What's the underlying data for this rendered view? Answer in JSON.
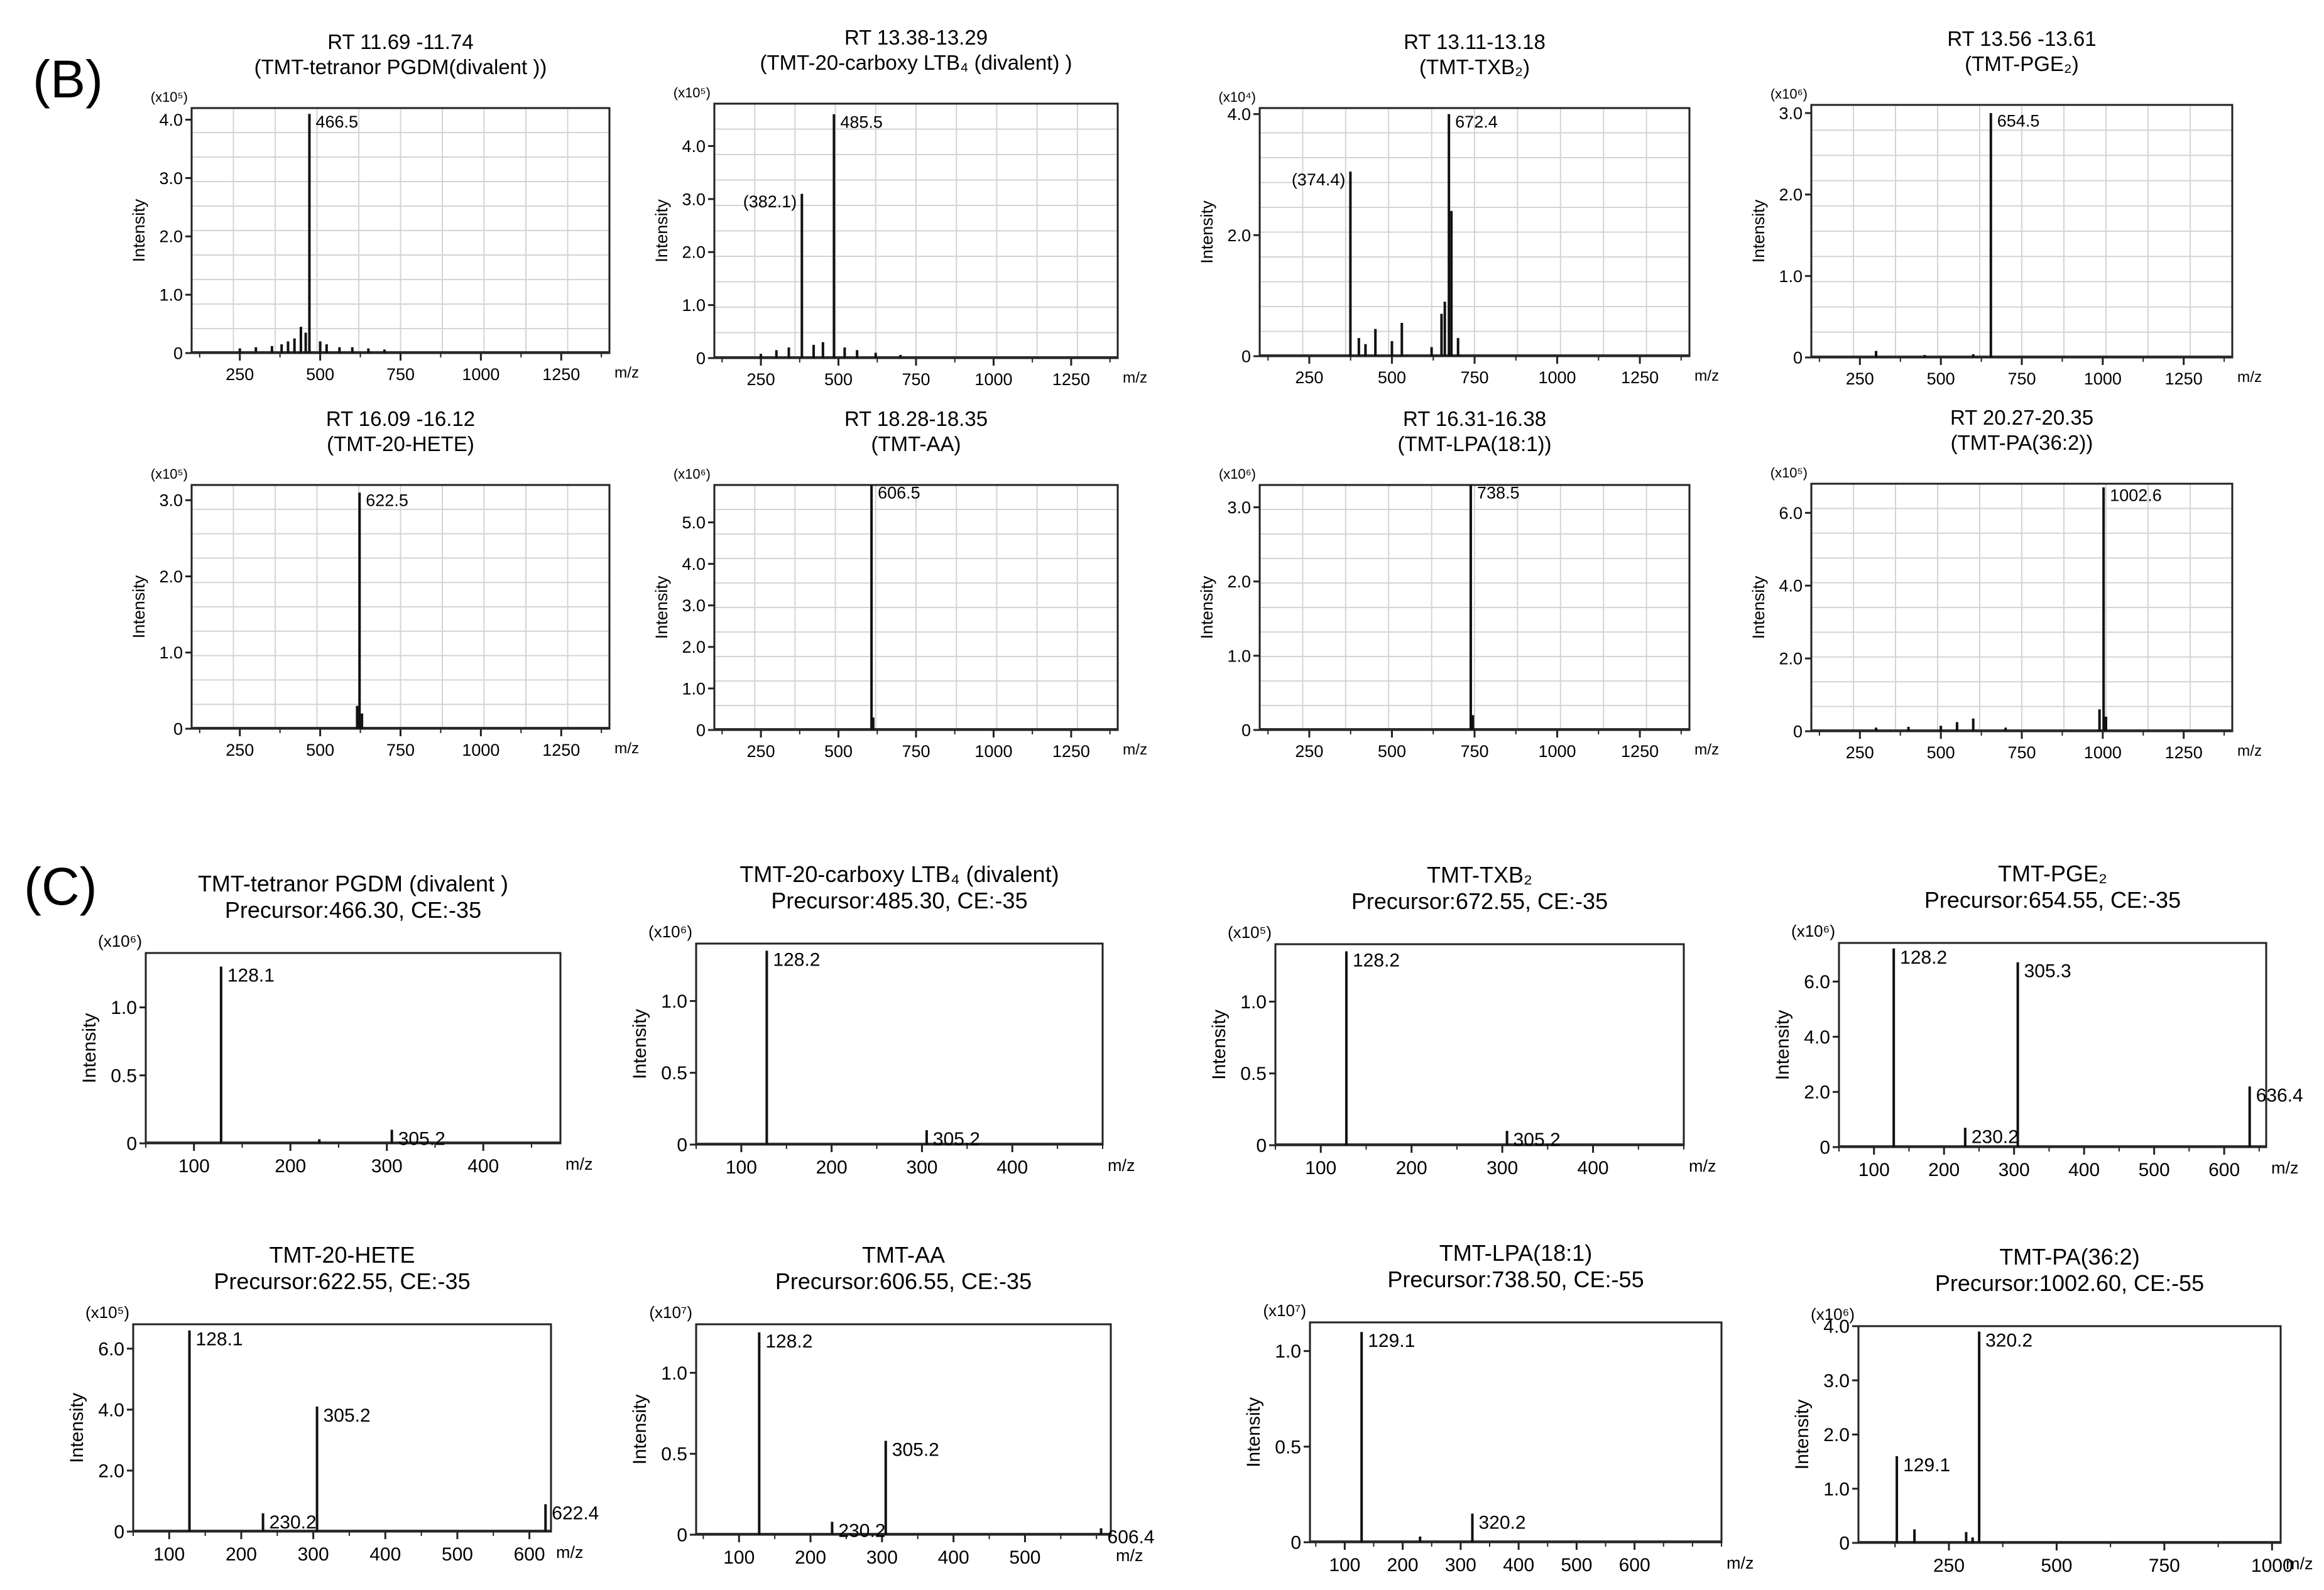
{
  "panels": [
    {
      "label": "(B)"
    },
    {
      "label": "(C)"
    }
  ],
  "chart_data": [
    {
      "panel": "B",
      "type": "bar",
      "title": [
        "RT 11.69 -11.74",
        "(TMT-tetranor PGDM(divalent ))"
      ],
      "ylabel": "Intensity",
      "xlabel": "m/z",
      "scale_label": "(x10⁵)",
      "xlim": [
        100,
        1400
      ],
      "xticks": [
        250,
        500,
        750,
        1000,
        1250
      ],
      "ylim": [
        0,
        4.2
      ],
      "yticks": [
        0,
        1.0,
        2.0,
        3.0,
        4.0
      ],
      "ytick_labels": [
        "0",
        "1.0",
        "2.0",
        "3.0",
        "4.0"
      ],
      "peaks": [
        {
          "x": 466.5,
          "y": 4.1,
          "label": "466.5"
        },
        {
          "x": 440,
          "y": 0.45
        },
        {
          "x": 455,
          "y": 0.35
        },
        {
          "x": 420,
          "y": 0.25
        },
        {
          "x": 400,
          "y": 0.2
        },
        {
          "x": 380,
          "y": 0.15
        },
        {
          "x": 500,
          "y": 0.2
        },
        {
          "x": 520,
          "y": 0.15
        },
        {
          "x": 350,
          "y": 0.12
        },
        {
          "x": 300,
          "y": 0.1
        },
        {
          "x": 250,
          "y": 0.08
        },
        {
          "x": 600,
          "y": 0.1
        },
        {
          "x": 650,
          "y": 0.08
        },
        {
          "x": 700,
          "y": 0.06
        },
        {
          "x": 560,
          "y": 0.1
        }
      ]
    },
    {
      "panel": "B",
      "type": "bar",
      "title": [
        "RT 13.38-13.29",
        "(TMT-20-carboxy LTB₄ (divalent) )"
      ],
      "ylabel": "Intensity",
      "xlabel": "m/z",
      "scale_label": "(x10⁵)",
      "xlim": [
        100,
        1400
      ],
      "xticks": [
        250,
        500,
        750,
        1000,
        1250
      ],
      "ylim": [
        0,
        4.8
      ],
      "yticks": [
        0,
        1.0,
        2.0,
        3.0,
        4.0
      ],
      "ytick_labels": [
        "0",
        "1.0",
        "2.0",
        "3.0",
        "4.0"
      ],
      "peaks": [
        {
          "x": 485.5,
          "y": 4.6,
          "label": "485.5"
        },
        {
          "x": 382.1,
          "y": 3.1,
          "label": "(382.1)"
        },
        {
          "x": 300,
          "y": 0.15
        },
        {
          "x": 340,
          "y": 0.2
        },
        {
          "x": 420,
          "y": 0.25
        },
        {
          "x": 450,
          "y": 0.3
        },
        {
          "x": 520,
          "y": 0.2
        },
        {
          "x": 560,
          "y": 0.15
        },
        {
          "x": 620,
          "y": 0.1
        },
        {
          "x": 700,
          "y": 0.06
        },
        {
          "x": 250,
          "y": 0.08
        }
      ]
    },
    {
      "panel": "B",
      "type": "bar",
      "title": [
        "RT 13.11-13.18",
        "(TMT-TXB₂)"
      ],
      "ylabel": "Intensity",
      "xlabel": "m/z",
      "scale_label": "(x10⁴)",
      "xlim": [
        100,
        1400
      ],
      "xticks": [
        250,
        500,
        750,
        1000,
        1250
      ],
      "ylim": [
        0,
        4.1
      ],
      "yticks": [
        0,
        2.0,
        4.0
      ],
      "ytick_labels": [
        "0",
        "2.0",
        "4.0"
      ],
      "peaks": [
        {
          "x": 672.4,
          "y": 4.0,
          "label": "672.4"
        },
        {
          "x": 374.4,
          "y": 3.05,
          "label": "(374.4)"
        },
        {
          "x": 680,
          "y": 2.4
        },
        {
          "x": 660,
          "y": 0.9
        },
        {
          "x": 650,
          "y": 0.7
        },
        {
          "x": 530,
          "y": 0.55
        },
        {
          "x": 450,
          "y": 0.45
        },
        {
          "x": 400,
          "y": 0.3
        },
        {
          "x": 420,
          "y": 0.2
        },
        {
          "x": 500,
          "y": 0.25
        },
        {
          "x": 700,
          "y": 0.3
        },
        {
          "x": 620,
          "y": 0.15
        }
      ]
    },
    {
      "panel": "B",
      "type": "bar",
      "title": [
        "RT 13.56 -13.61",
        "(TMT-PGE₂)"
      ],
      "ylabel": "Intensity",
      "xlabel": "m/z",
      "scale_label": "(x10⁶)",
      "xlim": [
        100,
        1400
      ],
      "xticks": [
        250,
        500,
        750,
        1000,
        1250
      ],
      "ylim": [
        0,
        3.1
      ],
      "yticks": [
        0,
        1.0,
        2.0,
        3.0
      ],
      "ytick_labels": [
        "0",
        "1.0",
        "2.0",
        "3.0"
      ],
      "peaks": [
        {
          "x": 654.5,
          "y": 3.0,
          "label": "654.5"
        },
        {
          "x": 300,
          "y": 0.08
        },
        {
          "x": 600,
          "y": 0.04
        },
        {
          "x": 450,
          "y": 0.03
        }
      ]
    },
    {
      "panel": "B",
      "type": "bar",
      "title": [
        "RT 16.09 -16.12",
        "(TMT-20-HETE)"
      ],
      "ylabel": "Intensity",
      "xlabel": "m/z",
      "scale_label": "(x10⁵)",
      "xlim": [
        100,
        1400
      ],
      "xticks": [
        250,
        500,
        750,
        1000,
        1250
      ],
      "ylim": [
        0,
        3.2
      ],
      "yticks": [
        0,
        1.0,
        2.0,
        3.0
      ],
      "ytick_labels": [
        "0",
        "1.0",
        "2.0",
        "3.0"
      ],
      "peaks": [
        {
          "x": 622.5,
          "y": 3.1,
          "label": "622.5"
        },
        {
          "x": 615,
          "y": 0.3
        },
        {
          "x": 630,
          "y": 0.2
        }
      ]
    },
    {
      "panel": "B",
      "type": "bar",
      "title": [
        "RT 18.28-18.35",
        "(TMT-AA)"
      ],
      "ylabel": "Intensity",
      "xlabel": "m/z",
      "scale_label": "(x10⁶)",
      "xlim": [
        100,
        1400
      ],
      "xticks": [
        250,
        500,
        750,
        1000,
        1250
      ],
      "ylim": [
        0,
        5.9
      ],
      "yticks": [
        0,
        1.0,
        2.0,
        3.0,
        4.0,
        5.0
      ],
      "ytick_labels": [
        "0",
        "1.0",
        "2.0",
        "3.0",
        "4.0",
        "5.0"
      ],
      "peaks": [
        {
          "x": 606.5,
          "y": 5.9,
          "label": "606.5"
        },
        {
          "x": 612,
          "y": 0.3
        }
      ]
    },
    {
      "panel": "B",
      "type": "bar",
      "title": [
        "RT 16.31-16.38",
        "(TMT-LPA(18:1))"
      ],
      "ylabel": "Intensity",
      "xlabel": "m/z",
      "scale_label": "(x10⁶)",
      "xlim": [
        100,
        1400
      ],
      "xticks": [
        250,
        500,
        750,
        1000,
        1250
      ],
      "ylim": [
        0,
        3.3
      ],
      "yticks": [
        0,
        1.0,
        2.0,
        3.0
      ],
      "ytick_labels": [
        "0",
        "1.0",
        "2.0",
        "3.0"
      ],
      "peaks": [
        {
          "x": 738.5,
          "y": 3.3,
          "label": "738.5"
        },
        {
          "x": 745,
          "y": 0.2
        }
      ]
    },
    {
      "panel": "B",
      "type": "bar",
      "title": [
        "RT 20.27-20.35",
        "(TMT-PA(36:2))"
      ],
      "ylabel": "Intensity",
      "xlabel": "m/z",
      "scale_label": "(x10⁵)",
      "xlim": [
        100,
        1400
      ],
      "xticks": [
        250,
        500,
        750,
        1000,
        1250
      ],
      "ylim": [
        0,
        6.8
      ],
      "yticks": [
        0,
        2.0,
        4.0,
        6.0
      ],
      "ytick_labels": [
        "0",
        "2.0",
        "4.0",
        "6.0"
      ],
      "peaks": [
        {
          "x": 1002.6,
          "y": 6.7,
          "label": "1002.6"
        },
        {
          "x": 990,
          "y": 0.6
        },
        {
          "x": 1010,
          "y": 0.4
        },
        {
          "x": 600,
          "y": 0.35
        },
        {
          "x": 550,
          "y": 0.25
        },
        {
          "x": 500,
          "y": 0.15
        },
        {
          "x": 400,
          "y": 0.12
        },
        {
          "x": 300,
          "y": 0.1
        },
        {
          "x": 700,
          "y": 0.1
        }
      ]
    },
    {
      "panel": "C",
      "type": "bar",
      "title": [
        "TMT-tetranor PGDM (divalent )",
        "Precursor:466.30, CE:-35"
      ],
      "ylabel": "Intensity",
      "xlabel": "m/z",
      "scale_label": "(x10⁶)",
      "xlim": [
        50,
        480
      ],
      "xticks": [
        100,
        200,
        300,
        400
      ],
      "ylim": [
        0,
        1.4
      ],
      "yticks": [
        0,
        0.5,
        1.0
      ],
      "ytick_labels": [
        "0",
        "0.5",
        "1.0"
      ],
      "peaks": [
        {
          "x": 128.1,
          "y": 1.3,
          "label": "128.1"
        },
        {
          "x": 305.2,
          "y": 0.1,
          "label": "305.2"
        },
        {
          "x": 230,
          "y": 0.03
        }
      ]
    },
    {
      "panel": "C",
      "type": "bar",
      "title": [
        "TMT-20-carboxy LTB₄  (divalent)",
        "Precursor:485.30, CE:-35"
      ],
      "ylabel": "Intensity",
      "xlabel": "m/z",
      "scale_label": "(x10⁶)",
      "xlim": [
        50,
        500
      ],
      "xticks": [
        100,
        200,
        300,
        400
      ],
      "ylim": [
        0,
        1.4
      ],
      "yticks": [
        0,
        0.5,
        1.0
      ],
      "ytick_labels": [
        "0",
        "0.5",
        "1.0"
      ],
      "peaks": [
        {
          "x": 128.2,
          "y": 1.35,
          "label": "128.2"
        },
        {
          "x": 305.2,
          "y": 0.1,
          "label": "305.2"
        }
      ]
    },
    {
      "panel": "C",
      "type": "bar",
      "title": [
        "TMT-TXB₂",
        "Precursor:672.55, CE:-35"
      ],
      "ylabel": "Intensity",
      "xlabel": "m/z",
      "scale_label": "(x10⁵)",
      "xlim": [
        50,
        500
      ],
      "xticks": [
        100,
        200,
        300,
        400
      ],
      "ylim": [
        0,
        1.4
      ],
      "yticks": [
        0,
        0.5,
        1.0
      ],
      "ytick_labels": [
        "0",
        "0.5",
        "1.0"
      ],
      "peaks": [
        {
          "x": 128.2,
          "y": 1.35,
          "label": "128.2"
        },
        {
          "x": 305.2,
          "y": 0.1,
          "label": "305.2"
        }
      ]
    },
    {
      "panel": "C",
      "type": "bar",
      "title": [
        "TMT-PGE₂",
        "Precursor:654.55, CE:-35"
      ],
      "ylabel": "Intensity",
      "xlabel": "m/z",
      "scale_label": "(x10⁶)",
      "xlim": [
        50,
        660
      ],
      "xticks": [
        100,
        200,
        300,
        400,
        500,
        600
      ],
      "ylim": [
        0,
        7.4
      ],
      "yticks": [
        0,
        2.0,
        4.0,
        6.0
      ],
      "ytick_labels": [
        "0",
        "2.0",
        "4.0",
        "6.0"
      ],
      "peaks": [
        {
          "x": 128.2,
          "y": 7.2,
          "label": "128.2"
        },
        {
          "x": 305.3,
          "y": 6.7,
          "label": "305.3"
        },
        {
          "x": 636.4,
          "y": 2.2,
          "label": "636.4"
        },
        {
          "x": 230.2,
          "y": 0.7,
          "label": "230.2"
        }
      ]
    },
    {
      "panel": "C",
      "type": "bar",
      "title": [
        "TMT-20-HETE",
        "Precursor:622.55, CE:-35"
      ],
      "ylabel": "Intensity",
      "xlabel": "m/z",
      "scale_label": "(x10⁵)",
      "xlim": [
        50,
        630
      ],
      "xticks": [
        100,
        200,
        300,
        400,
        500,
        600
      ],
      "ylim": [
        0,
        6.8
      ],
      "yticks": [
        0,
        2.0,
        4.0,
        6.0
      ],
      "ytick_labels": [
        "0",
        "2.0",
        "4.0",
        "6.0"
      ],
      "peaks": [
        {
          "x": 128.1,
          "y": 6.6,
          "label": "128.1"
        },
        {
          "x": 305.2,
          "y": 4.1,
          "label": "305.2"
        },
        {
          "x": 622.4,
          "y": 0.9,
          "label": "622.4"
        },
        {
          "x": 230.2,
          "y": 0.6,
          "label": "230.2"
        }
      ]
    },
    {
      "panel": "C",
      "type": "bar",
      "title": [
        "TMT-AA",
        "Precursor:606.55, CE:-35"
      ],
      "ylabel": "Intensity",
      "xlabel": "m/z",
      "scale_label": "(x10⁷)",
      "xlim": [
        40,
        620
      ],
      "xticks": [
        100,
        200,
        300,
        400,
        500
      ],
      "ylim": [
        0,
        1.3
      ],
      "yticks": [
        0,
        0.5,
        1.0
      ],
      "ytick_labels": [
        "0",
        "0.5",
        "1.0"
      ],
      "peaks": [
        {
          "x": 128.2,
          "y": 1.25,
          "label": "128.2"
        },
        {
          "x": 305.2,
          "y": 0.58,
          "label": "305.2"
        },
        {
          "x": 230.2,
          "y": 0.08,
          "label": "230.2"
        },
        {
          "x": 606.4,
          "y": 0.04,
          "label": "606.4"
        }
      ]
    },
    {
      "panel": "C",
      "type": "bar",
      "title": [
        "TMT-LPA(18:1)",
        "Precursor:738.50, CE:-55"
      ],
      "ylabel": "Intensity",
      "xlabel": "m/z",
      "scale_label": "(x10⁷)",
      "xlim": [
        40,
        750
      ],
      "xticks": [
        100,
        200,
        300,
        400,
        500,
        600
      ],
      "ylim": [
        0,
        1.15
      ],
      "yticks": [
        0,
        0.5,
        1.0
      ],
      "ytick_labels": [
        "0",
        "0.5",
        "1.0"
      ],
      "peaks": [
        {
          "x": 129.1,
          "y": 1.1,
          "label": "129.1"
        },
        {
          "x": 320.2,
          "y": 0.15,
          "label": "320.2"
        },
        {
          "x": 230,
          "y": 0.03
        }
      ]
    },
    {
      "panel": "C",
      "type": "bar",
      "title": [
        "TMT-PA(36:2)",
        "Precursor:1002.60, CE:-55"
      ],
      "ylabel": "Intensity",
      "xlabel": "m/z",
      "scale_label": "(x10⁶)",
      "xlim": [
        40,
        1020
      ],
      "xticks": [
        250,
        500,
        750,
        1000
      ],
      "ylim": [
        0,
        4.0
      ],
      "yticks": [
        0,
        1.0,
        2.0,
        3.0,
        4.0
      ],
      "ytick_labels": [
        "0",
        "1.0",
        "2.0",
        "3.0",
        "4.0"
      ],
      "peaks": [
        {
          "x": 320.2,
          "y": 3.9,
          "label": "320.2"
        },
        {
          "x": 129.1,
          "y": 1.6,
          "label": "129.1"
        },
        {
          "x": 170,
          "y": 0.25
        },
        {
          "x": 290,
          "y": 0.2
        },
        {
          "x": 305,
          "y": 0.1
        }
      ]
    }
  ]
}
